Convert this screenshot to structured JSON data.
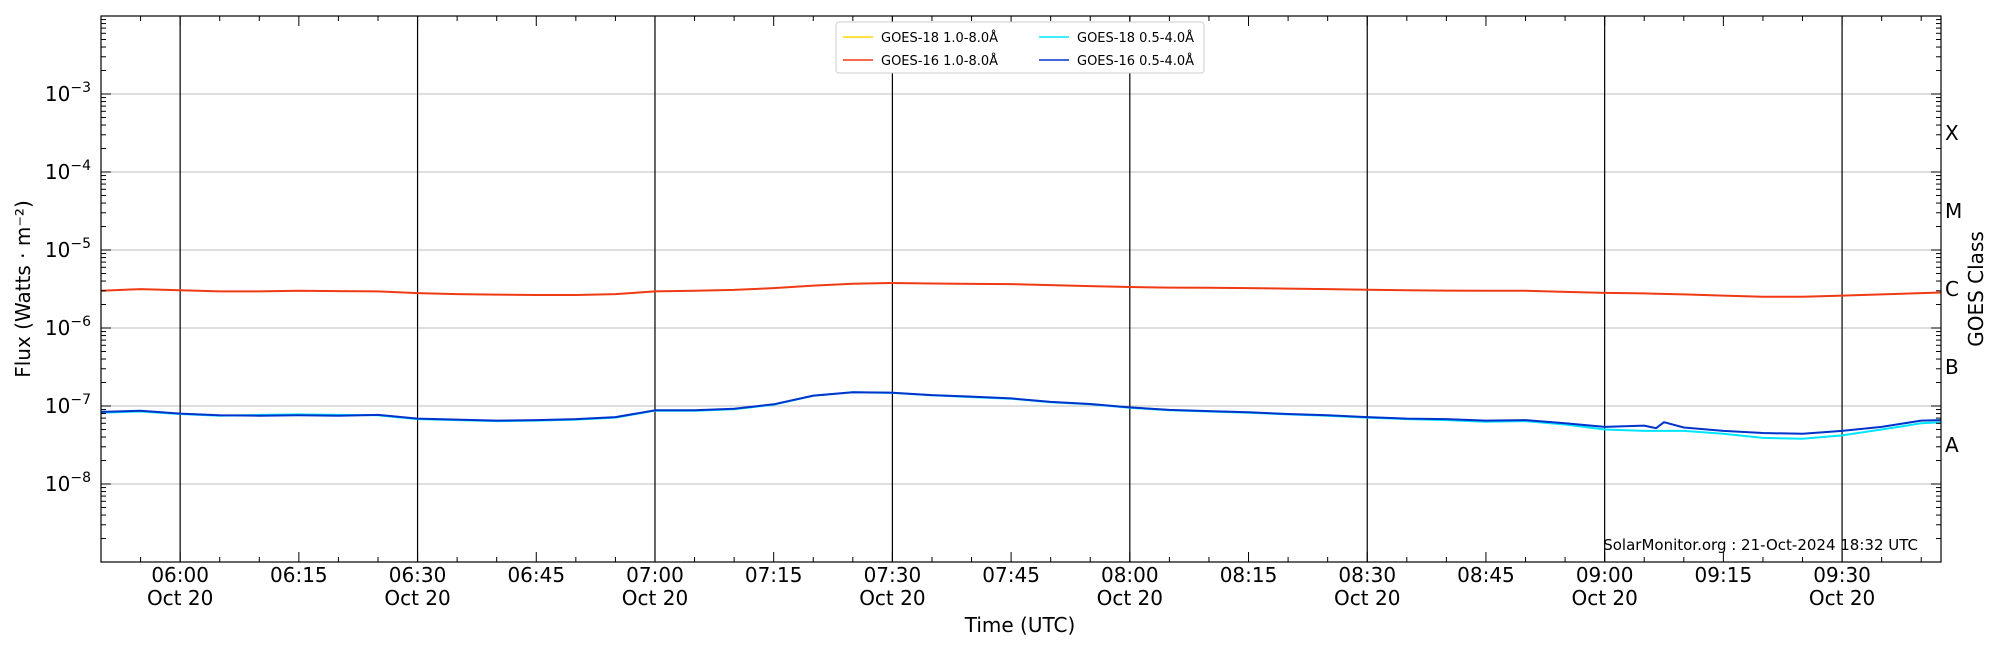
{
  "chart_data": {
    "type": "line",
    "ylabel": "Flux (Watts · m⁻²)",
    "xlabel": "Time (UTC)",
    "right_label": "GOES Class",
    "watermark": "SolarMonitor.org : 21-Oct-2024 18:32 UTC",
    "y_scale": "log",
    "ylim": [
      1e-09,
      0.01
    ],
    "xlim_minutes": [
      350,
      582.5
    ],
    "grid": "horizontal at decades, vertical at half-hours",
    "legend_position": "top-center",
    "y_ticks": [
      {
        "value": 0.001,
        "base": "10",
        "exp": "−3"
      },
      {
        "value": 0.0001,
        "base": "10",
        "exp": "−4"
      },
      {
        "value": 1e-05,
        "base": "10",
        "exp": "−5"
      },
      {
        "value": 1e-06,
        "base": "10",
        "exp": "−6"
      },
      {
        "value": 1e-07,
        "base": "10",
        "exp": "−7"
      },
      {
        "value": 1e-08,
        "base": "10",
        "exp": "−8"
      }
    ],
    "x_ticks": [
      {
        "minute": 360,
        "time": "06:00",
        "date": "Oct 20"
      },
      {
        "minute": 375,
        "time": "06:15",
        "date": ""
      },
      {
        "minute": 390,
        "time": "06:30",
        "date": "Oct 20"
      },
      {
        "minute": 405,
        "time": "06:45",
        "date": ""
      },
      {
        "minute": 420,
        "time": "07:00",
        "date": "Oct 20"
      },
      {
        "minute": 435,
        "time": "07:15",
        "date": ""
      },
      {
        "minute": 450,
        "time": "07:30",
        "date": "Oct 20"
      },
      {
        "minute": 465,
        "time": "07:45",
        "date": ""
      },
      {
        "minute": 480,
        "time": "08:00",
        "date": "Oct 20"
      },
      {
        "minute": 495,
        "time": "08:15",
        "date": ""
      },
      {
        "minute": 510,
        "time": "08:30",
        "date": "Oct 20"
      },
      {
        "minute": 525,
        "time": "08:45",
        "date": ""
      },
      {
        "minute": 540,
        "time": "09:00",
        "date": "Oct 20"
      },
      {
        "minute": 555,
        "time": "09:15",
        "date": ""
      },
      {
        "minute": 570,
        "time": "09:30",
        "date": "Oct 20"
      }
    ],
    "goes_classes": [
      {
        "label": "X",
        "value": 0.0003162
      },
      {
        "label": "M",
        "value": 3.162e-05
      },
      {
        "label": "C",
        "value": 3.162e-06
      },
      {
        "label": "B",
        "value": 3.162e-07
      },
      {
        "label": "A",
        "value": 3.162e-08
      }
    ],
    "series": [
      {
        "name": "GOES-18 1.0-8.0Å",
        "color": "#ffd700",
        "points": []
      },
      {
        "name": "GOES-18 0.5-4.0Å",
        "color": "#00e5ff",
        "points": [
          [
            350,
            8.2e-08
          ],
          [
            355,
            8.5e-08
          ],
          [
            360,
            7.9e-08
          ],
          [
            365,
            7.5e-08
          ],
          [
            370,
            7.7e-08
          ],
          [
            375,
            7.8e-08
          ],
          [
            380,
            7.7e-08
          ],
          [
            385,
            7.6e-08
          ],
          [
            390,
            6.8e-08
          ],
          [
            395,
            6.6e-08
          ],
          [
            400,
            6.4e-08
          ],
          [
            405,
            6.5e-08
          ],
          [
            410,
            6.7e-08
          ],
          [
            415,
            7.1e-08
          ],
          [
            420,
            8.7e-08
          ],
          [
            425,
            8.7e-08
          ],
          [
            430,
            9.1e-08
          ],
          [
            435,
            1.04e-07
          ],
          [
            440,
            1.35e-07
          ],
          [
            445,
            1.5e-07
          ],
          [
            450,
            1.47e-07
          ],
          [
            455,
            1.37e-07
          ],
          [
            460,
            1.3e-07
          ],
          [
            465,
            1.24e-07
          ],
          [
            470,
            1.12e-07
          ],
          [
            475,
            1.05e-07
          ],
          [
            480,
            9.5e-08
          ],
          [
            485,
            8.8e-08
          ],
          [
            490,
            8.5e-08
          ],
          [
            495,
            8.2e-08
          ],
          [
            500,
            7.8e-08
          ],
          [
            505,
            7.5e-08
          ],
          [
            510,
            7.1e-08
          ],
          [
            515,
            6.8e-08
          ],
          [
            520,
            6.6e-08
          ],
          [
            525,
            6.3e-08
          ],
          [
            530,
            6.4e-08
          ],
          [
            535,
            5.8e-08
          ],
          [
            540,
            5e-08
          ],
          [
            545,
            4.8e-08
          ],
          [
            550,
            4.8e-08
          ],
          [
            555,
            4.4e-08
          ],
          [
            560,
            3.9e-08
          ],
          [
            565,
            3.8e-08
          ],
          [
            570,
            4.2e-08
          ],
          [
            575,
            5e-08
          ],
          [
            580,
            6e-08
          ],
          [
            582.5,
            6.2e-08
          ]
        ]
      },
      {
        "name": "GOES-16 1.0-8.0Å",
        "color": "#f03a14",
        "points": [
          [
            350,
            3e-06
          ],
          [
            355,
            3.15e-06
          ],
          [
            360,
            3.05e-06
          ],
          [
            365,
            2.95e-06
          ],
          [
            370,
            2.95e-06
          ],
          [
            375,
            3e-06
          ],
          [
            380,
            2.97e-06
          ],
          [
            385,
            2.95e-06
          ],
          [
            390,
            2.8e-06
          ],
          [
            395,
            2.72e-06
          ],
          [
            400,
            2.68e-06
          ],
          [
            405,
            2.65e-06
          ],
          [
            410,
            2.65e-06
          ],
          [
            415,
            2.72e-06
          ],
          [
            420,
            2.95e-06
          ],
          [
            425,
            3e-06
          ],
          [
            430,
            3.08e-06
          ],
          [
            435,
            3.25e-06
          ],
          [
            440,
            3.5e-06
          ],
          [
            445,
            3.7e-06
          ],
          [
            450,
            3.78e-06
          ],
          [
            455,
            3.72e-06
          ],
          [
            460,
            3.68e-06
          ],
          [
            465,
            3.65e-06
          ],
          [
            470,
            3.55e-06
          ],
          [
            475,
            3.45e-06
          ],
          [
            480,
            3.35e-06
          ],
          [
            485,
            3.3e-06
          ],
          [
            490,
            3.28e-06
          ],
          [
            495,
            3.25e-06
          ],
          [
            500,
            3.2e-06
          ],
          [
            505,
            3.15e-06
          ],
          [
            510,
            3.1e-06
          ],
          [
            515,
            3.05e-06
          ],
          [
            520,
            3.02e-06
          ],
          [
            525,
            3e-06
          ],
          [
            530,
            3e-06
          ],
          [
            535,
            2.9e-06
          ],
          [
            540,
            2.82e-06
          ],
          [
            545,
            2.78e-06
          ],
          [
            550,
            2.7e-06
          ],
          [
            555,
            2.6e-06
          ],
          [
            560,
            2.52e-06
          ],
          [
            565,
            2.52e-06
          ],
          [
            570,
            2.6e-06
          ],
          [
            575,
            2.7e-06
          ],
          [
            580,
            2.8e-06
          ],
          [
            582.5,
            2.85e-06
          ]
        ]
      },
      {
        "name": "GOES-16 0.5-4.0Å",
        "color": "#0033cc",
        "points": [
          [
            350,
            8.4e-08
          ],
          [
            355,
            8.7e-08
          ],
          [
            360,
            8e-08
          ],
          [
            365,
            7.6e-08
          ],
          [
            370,
            7.5e-08
          ],
          [
            375,
            7.6e-08
          ],
          [
            380,
            7.5e-08
          ],
          [
            385,
            7.7e-08
          ],
          [
            390,
            6.9e-08
          ],
          [
            395,
            6.7e-08
          ],
          [
            400,
            6.5e-08
          ],
          [
            405,
            6.6e-08
          ],
          [
            410,
            6.8e-08
          ],
          [
            415,
            7.2e-08
          ],
          [
            420,
            8.8e-08
          ],
          [
            425,
            8.8e-08
          ],
          [
            430,
            9.2e-08
          ],
          [
            435,
            1.05e-07
          ],
          [
            440,
            1.36e-07
          ],
          [
            445,
            1.5e-07
          ],
          [
            450,
            1.48e-07
          ],
          [
            455,
            1.38e-07
          ],
          [
            460,
            1.32e-07
          ],
          [
            465,
            1.25e-07
          ],
          [
            470,
            1.13e-07
          ],
          [
            475,
            1.06e-07
          ],
          [
            480,
            9.6e-08
          ],
          [
            485,
            8.9e-08
          ],
          [
            490,
            8.6e-08
          ],
          [
            495,
            8.3e-08
          ],
          [
            500,
            7.9e-08
          ],
          [
            505,
            7.6e-08
          ],
          [
            510,
            7.2e-08
          ],
          [
            515,
            6.9e-08
          ],
          [
            520,
            6.8e-08
          ],
          [
            525,
            6.5e-08
          ],
          [
            530,
            6.6e-08
          ],
          [
            535,
            6e-08
          ],
          [
            540,
            5.4e-08
          ],
          [
            545,
            5.6e-08
          ],
          [
            546.5,
            5.2e-08
          ],
          [
            547.5,
            6.2e-08
          ],
          [
            550,
            5.3e-08
          ],
          [
            555,
            4.8e-08
          ],
          [
            560,
            4.5e-08
          ],
          [
            565,
            4.4e-08
          ],
          [
            570,
            4.8e-08
          ],
          [
            575,
            5.4e-08
          ],
          [
            580,
            6.5e-08
          ],
          [
            582.5,
            6.6e-08
          ]
        ]
      }
    ]
  }
}
